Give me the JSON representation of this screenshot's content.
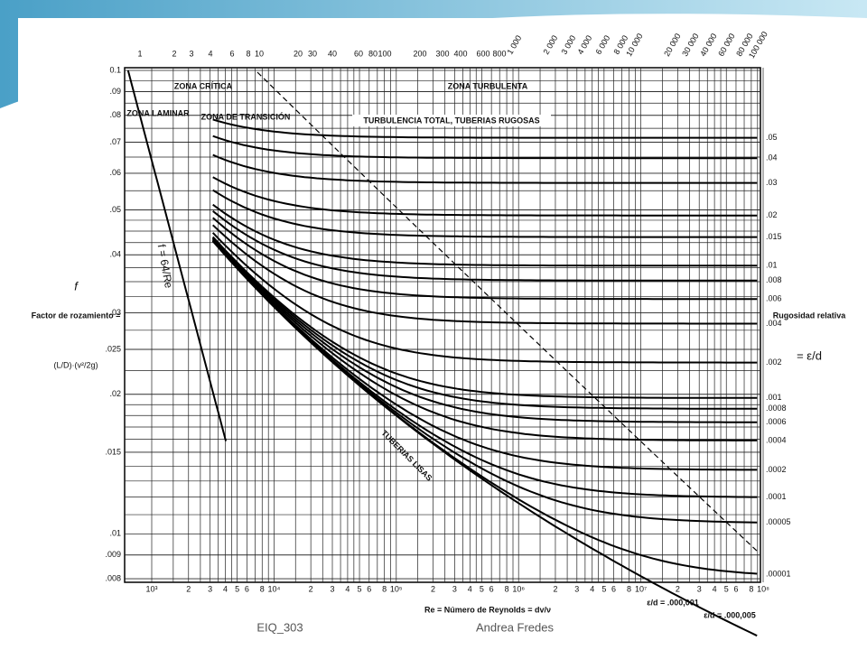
{
  "diagram": {
    "f_axis_labels": [
      "0.1",
      ".09",
      ".08",
      ".07",
      ".06",
      ".05",
      ".04",
      ".03",
      ".025",
      ".02",
      ".015",
      ".01",
      ".009",
      ".008"
    ],
    "roughness_labels": [
      ".05",
      ".04",
      ".03",
      ".02",
      ".015",
      ".01",
      ".008",
      ".006",
      ".004",
      ".002",
      ".001",
      ".0008",
      ".0006",
      ".0004",
      ".0002",
      ".0001",
      ".00005",
      ".00001"
    ],
    "reynolds_labels": [
      "10³",
      "2",
      "3",
      "4",
      "5",
      "6",
      "8",
      "10⁴",
      "2",
      "3",
      "4",
      "5",
      "6",
      "8",
      "10⁵",
      "2",
      "3",
      "4",
      "5",
      "6",
      "8",
      "10⁶",
      "2",
      "3",
      "4",
      "5",
      "6",
      "8",
      "10⁷",
      "2",
      "3",
      "4",
      "5",
      "6",
      "8",
      "10⁸"
    ],
    "vd_labels": [
      "1",
      "2",
      "3",
      "4",
      "6",
      "8",
      "10",
      "20",
      "30",
      "40",
      "60",
      "80",
      "100",
      "200",
      "300",
      "400",
      "600",
      "800",
      "1 000",
      "2 000",
      "3 000",
      "4 000",
      "6 000",
      "8 000",
      "10 000",
      "20 000",
      "30 000",
      "40 000",
      "60 000",
      "80 000",
      "100 000"
    ],
    "zones": {
      "laminar": "ZONA LAMINAR",
      "critical": "ZONA CRÍTICA",
      "transition": "ZONA DE TRANSICIÓN",
      "turbulent": "ZONA TURBULENTA",
      "rough": "TURBULENCIA TOTAL, TUBERIAS RUGOSAS",
      "smooth": "TUBERIAS LISAS",
      "laminar_law": "f = 64/Re"
    },
    "f_symbol": "f",
    "f_description": "Factor de rozamiento =",
    "f_formula": "(L/D)·(v²/2g)",
    "roughness_title": "Rugosidad relativa",
    "roughness_formula": "= ε/d",
    "reynolds_title": "Re = Número de Reynolds = dv/ν",
    "smooth_note_1": "ε/d = .000,001",
    "smooth_note_2": "ε/d = .000,005"
  },
  "footer": {
    "course": "EIQ_303",
    "author": "Andrea Fredes"
  }
}
